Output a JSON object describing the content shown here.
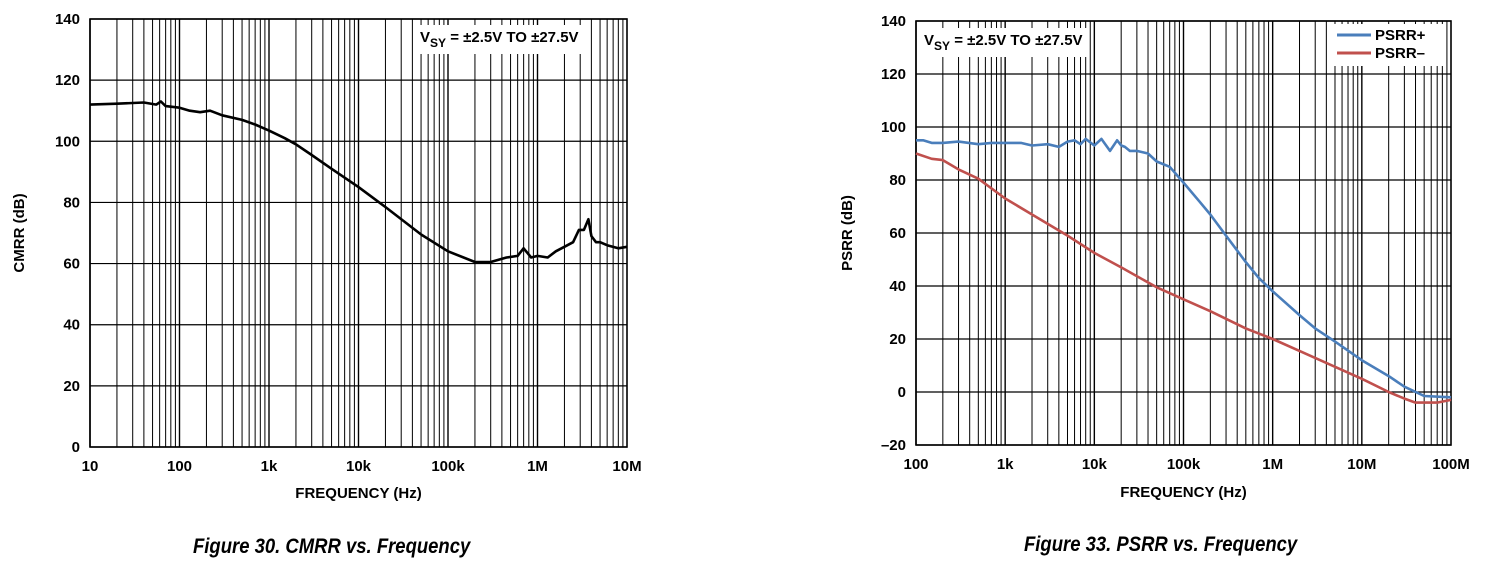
{
  "chart_data": [
    {
      "type": "line",
      "title": "",
      "caption": "Figure 30. CMRR vs. Frequency",
      "annotation": {
        "prefix": "V",
        "subscript": "SY",
        "suffix": " = ±2.5V TO ±27.5V"
      },
      "xlabel": "FREQUENCY (Hz)",
      "ylabel": "CMRR (dB)",
      "xscale": "log",
      "xlim": [
        10,
        10000000
      ],
      "ylim": [
        0,
        140
      ],
      "xticks": [
        10,
        100,
        1000,
        10000,
        100000,
        1000000,
        10000000
      ],
      "xtick_labels": [
        "10",
        "100",
        "1k",
        "10k",
        "100k",
        "1M",
        "10M"
      ],
      "yticks": [
        0,
        20,
        40,
        60,
        80,
        100,
        120,
        140
      ],
      "ytick_labels": [
        "0",
        "20",
        "40",
        "60",
        "80",
        "100",
        "120",
        "140"
      ],
      "grid": true,
      "series": [
        {
          "name": "CMRR",
          "color": "#000000",
          "x": [
            10,
            20,
            40,
            55,
            62,
            70,
            100,
            130,
            170,
            220,
            300,
            500,
            700,
            1000,
            1500,
            2000,
            3000,
            5000,
            10000,
            20000,
            50000,
            100000,
            200000,
            300000,
            450000,
            600000,
            700000,
            850000,
            1000000,
            1300000,
            1600000,
            2000000,
            2500000,
            2900000,
            3300000,
            3700000,
            4000000,
            4500000,
            5000000,
            6000000,
            8000000,
            10000000
          ],
          "values": [
            112,
            112.3,
            112.7,
            112,
            113,
            111.5,
            111,
            110,
            109.5,
            110,
            108.5,
            107,
            105.5,
            103.5,
            101,
            99,
            95.5,
            91,
            85,
            78.5,
            69.5,
            64,
            60.5,
            60.5,
            62,
            62.5,
            65,
            62,
            62.5,
            62,
            64,
            65.5,
            67,
            71,
            71,
            74.5,
            69,
            67,
            67,
            66,
            65,
            65.5
          ]
        }
      ]
    },
    {
      "type": "line",
      "title": "",
      "caption": "Figure 33. PSRR vs. Frequency",
      "annotation": {
        "prefix": "V",
        "subscript": "SY",
        "suffix": " = ±2.5V TO ±27.5V"
      },
      "xlabel": "FREQUENCY (Hz)",
      "ylabel": "PSRR (dB)",
      "xscale": "log",
      "xlim": [
        100,
        100000000
      ],
      "ylim": [
        -20,
        140
      ],
      "xticks": [
        100,
        1000,
        10000,
        100000,
        1000000,
        10000000,
        100000000
      ],
      "xtick_labels": [
        "100",
        "1k",
        "10k",
        "100k",
        "1M",
        "10M",
        "100M"
      ],
      "yticks": [
        -20,
        0,
        20,
        40,
        60,
        80,
        100,
        120,
        140
      ],
      "ytick_labels": [
        "–20",
        "0",
        "20",
        "40",
        "60",
        "80",
        "100",
        "120",
        "140"
      ],
      "grid": true,
      "legend": "top-right",
      "series": [
        {
          "name": "PSRR+",
          "color": "#4a7ebb",
          "x": [
            100,
            120,
            150,
            200,
            300,
            500,
            700,
            1000,
            1500,
            2000,
            3000,
            4000,
            5000,
            6000,
            7000,
            8000,
            10000,
            12000,
            15000,
            18000,
            20000,
            22000,
            25000,
            30000,
            40000,
            50000,
            70000,
            100000,
            150000,
            200000,
            300000,
            500000,
            700000,
            1000000,
            2000000,
            3000000,
            5000000,
            10000000,
            20000000,
            30000000,
            50000000,
            100000000
          ],
          "values": [
            95,
            95,
            94,
            94,
            94.5,
            93.5,
            94,
            94,
            94,
            93,
            93.5,
            92.5,
            94.5,
            95,
            93.5,
            95.5,
            93,
            95.5,
            91,
            95,
            93,
            92.5,
            91,
            91,
            90,
            87,
            85,
            79,
            72,
            67,
            59,
            49,
            43,
            38,
            29,
            24,
            19,
            12,
            6,
            2,
            -1.5,
            -2
          ]
        },
        {
          "name": "PSRR–",
          "color": "#c0504d",
          "x": [
            100,
            150,
            200,
            300,
            500,
            1000,
            2000,
            5000,
            10000,
            20000,
            50000,
            100000,
            200000,
            500000,
            1000000,
            2000000,
            5000000,
            10000000,
            20000000,
            30000000,
            40000000,
            50000000,
            70000000,
            100000000
          ],
          "values": [
            90,
            88,
            87.5,
            84,
            80.5,
            73,
            67,
            59,
            52.5,
            47,
            39.5,
            35,
            30.5,
            24,
            20,
            15.5,
            9.5,
            5,
            0,
            -2.5,
            -4,
            -4,
            -4,
            -3
          ]
        }
      ]
    }
  ]
}
